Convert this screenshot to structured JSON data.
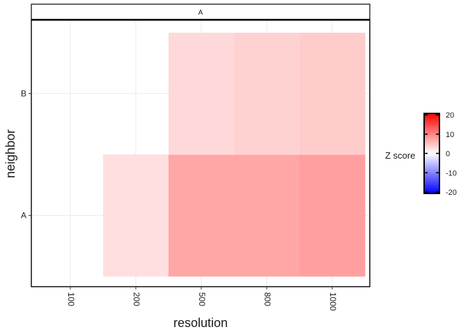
{
  "chart_data": {
    "type": "heatmap",
    "facet_label": "A",
    "xlabel": "resolution",
    "ylabel": "neighbor",
    "x_categories": [
      "100",
      "200",
      "500",
      "800",
      "1000"
    ],
    "y_categories": [
      "A",
      "B"
    ],
    "cells": [
      {
        "x": "200",
        "y": "A",
        "z": 2.5
      },
      {
        "x": "500",
        "y": "A",
        "z": 7.0
      },
      {
        "x": "800",
        "y": "A",
        "z": 7.0
      },
      {
        "x": "1000",
        "y": "A",
        "z": 7.5
      },
      {
        "x": "500",
        "y": "B",
        "z": 3.0
      },
      {
        "x": "800",
        "y": "B",
        "z": 3.5
      },
      {
        "x": "1000",
        "y": "B",
        "z": 4.0
      }
    ],
    "legend": {
      "title": "Z score",
      "ticks": [
        "20",
        "10",
        "0",
        "-10",
        "-20"
      ],
      "range": [
        -20,
        20
      ],
      "colors": {
        "low": "#0000ff",
        "mid": "#ffffff",
        "high": "#ff0000"
      },
      "placement": "right"
    },
    "grid": true
  }
}
